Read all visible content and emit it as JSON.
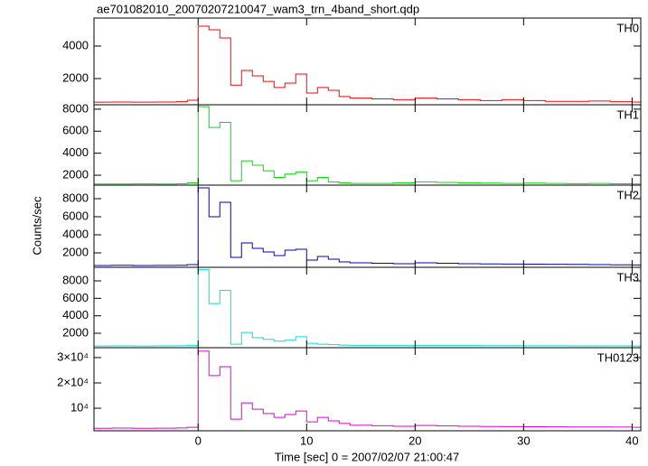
{
  "chart_data": {
    "type": "step",
    "title": "ae701082010_20070207210047_wam3_trn_4band_short.qdp",
    "x_label": "Time [sec] 0 = 2007/02/07 21:00:47",
    "y_label": "Counts/sec",
    "x": [
      -10,
      -8,
      -6,
      -4,
      -2,
      -1,
      0,
      1,
      2,
      3,
      4,
      5,
      6,
      7,
      8,
      9,
      10,
      11,
      12,
      13,
      14,
      16,
      18,
      20,
      22,
      24,
      26,
      28,
      30,
      32,
      34,
      36,
      38,
      40
    ],
    "xlim": [
      -9.6,
      40.8
    ],
    "xticks": [
      0,
      10,
      20,
      30,
      40
    ],
    "series": [
      {
        "name": "TH0",
        "color": "#ff0000",
        "ylim": [
          390,
          5720
        ],
        "yticks": [
          2000,
          4000
        ],
        "values": [
          550,
          560,
          550,
          560,
          580,
          670,
          5220,
          5000,
          4500,
          1600,
          2500,
          2170,
          1830,
          1450,
          1720,
          2280,
          1110,
          1450,
          1280,
          900,
          800,
          750,
          700,
          800,
          750,
          700,
          650,
          700,
          650,
          600,
          600,
          620,
          580,
          560
        ]
      },
      {
        "name": "TH1",
        "color": "#00dd00",
        "ylim": [
          1100,
          8400
        ],
        "yticks": [
          2000,
          4000,
          6000,
          8000
        ],
        "values": [
          1200,
          1200,
          1210,
          1200,
          1220,
          1300,
          8240,
          6340,
          6800,
          1500,
          3300,
          2900,
          2400,
          1800,
          2100,
          2300,
          1500,
          1800,
          1400,
          1300,
          1250,
          1250,
          1300,
          1400,
          1350,
          1300,
          1280,
          1250,
          1280,
          1250,
          1230,
          1250,
          1220,
          1200
        ]
      },
      {
        "name": "TH2",
        "color": "#0000c0",
        "ylim": [
          400,
          9500
        ],
        "yticks": [
          2000,
          4000,
          6000,
          8000
        ],
        "values": [
          600,
          620,
          600,
          610,
          630,
          700,
          9200,
          6000,
          7600,
          1500,
          3100,
          2500,
          2100,
          1700,
          2300,
          2400,
          1200,
          1600,
          1300,
          1000,
          900,
          850,
          800,
          900,
          850,
          800,
          780,
          760,
          750,
          740,
          720,
          700,
          680,
          660
        ]
      },
      {
        "name": "TH3",
        "color": "#00dddd",
        "ylim": [
          350,
          9550
        ],
        "yticks": [
          2000,
          4000,
          6000,
          8000
        ],
        "values": [
          550,
          560,
          550,
          560,
          570,
          620,
          9300,
          5400,
          6900,
          750,
          2100,
          1500,
          1300,
          1100,
          1200,
          1600,
          850,
          750,
          700,
          650,
          620,
          600,
          600,
          620,
          600,
          590,
          580,
          580,
          570,
          570,
          560,
          560,
          555,
          550
        ]
      },
      {
        "name": "TH0123",
        "color": "#dd00dd",
        "ylim": [
          1100,
          33900
        ],
        "yticks": [
          {
            "value": 10000,
            "label": "10⁴"
          },
          {
            "value": 20000,
            "label": "2×10⁴"
          },
          {
            "value": 30000,
            "label": "3×10⁴"
          }
        ],
        "values": [
          2100,
          2150,
          2100,
          2120,
          2200,
          2500,
          32500,
          22900,
          26400,
          5700,
          12100,
          9600,
          7900,
          6400,
          7500,
          8900,
          4600,
          6400,
          5000,
          4000,
          3300,
          3100,
          2900,
          3200,
          3000,
          2900,
          2800,
          2750,
          2700,
          2650,
          2600,
          2600,
          2550,
          2500
        ]
      }
    ]
  }
}
